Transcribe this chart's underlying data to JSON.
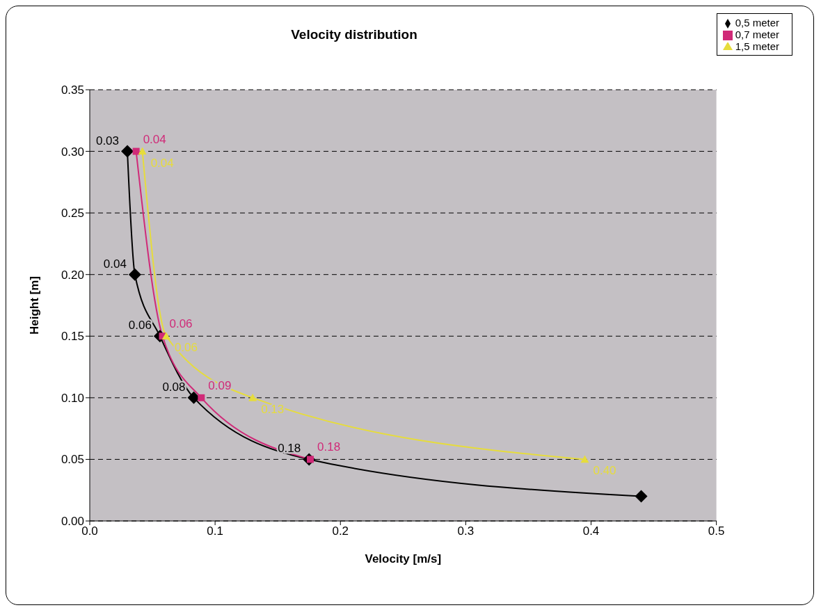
{
  "chart_data": {
    "type": "line",
    "title": "Velocity distribution",
    "xlabel": "Velocity [m/s]",
    "ylabel": "Height [m]",
    "xlim": [
      0,
      0.5
    ],
    "xticks": [
      {
        "value": 0,
        "label": "0.0"
      },
      0.1,
      0.2,
      0.3,
      0.4,
      0.5
    ],
    "ylim": [
      0,
      0.35
    ],
    "yticks": [
      {
        "value": 0,
        "label": "0.00"
      },
      0.05,
      {
        "value": 0.1,
        "label": "0.10"
      },
      0.15,
      {
        "value": 0.2,
        "label": "0.20"
      },
      0.25,
      {
        "value": 0.3,
        "label": "0.30"
      },
      0.35
    ],
    "grid": "y",
    "legend": "top right",
    "line_style": "solid",
    "series": [
      {
        "name": "0,5 meter",
        "color": "#000000",
        "marker": "diamond",
        "x": [
          0.03,
          0.036,
          0.056,
          0.083,
          0.175,
          0.44
        ],
        "values": [
          0.3,
          0.2,
          0.15,
          0.1,
          0.05,
          0.02
        ]
      },
      {
        "name": "0,7 meter",
        "color": "#d02a78",
        "marker": "square",
        "x": [
          0.037,
          0.058,
          0.089,
          0.176
        ],
        "values": [
          0.3,
          0.15,
          0.1,
          0.05
        ]
      },
      {
        "name": "1,5 meter",
        "color": "#e6dc3c",
        "marker": "triangle",
        "x": [
          0.042,
          0.061,
          0.13,
          0.395
        ],
        "values": [
          0.3,
          0.15,
          0.1,
          0.05
        ]
      }
    ],
    "annotations": [
      {
        "text": "0.03",
        "x": 0.03,
        "y": 0.3
      },
      {
        "text": "0.04",
        "x": 0.036,
        "y": 0.2
      },
      {
        "text": "0.06",
        "x": 0.056,
        "y": 0.15
      },
      {
        "text": "0.08",
        "x": 0.083,
        "y": 0.1
      },
      {
        "text": "0.18",
        "x": 0.175,
        "y": 0.05
      },
      {
        "text": "0.04",
        "x": 0.037,
        "y": 0.3
      },
      {
        "text": "0.06",
        "x": 0.058,
        "y": 0.15
      },
      {
        "text": "0.09",
        "x": 0.089,
        "y": 0.1
      },
      {
        "text": "0.18",
        "x": 0.176,
        "y": 0.05
      },
      {
        "text": "0.04",
        "x": 0.042,
        "y": 0.3
      },
      {
        "text": "0.06",
        "x": 0.061,
        "y": 0.15
      },
      {
        "text": "0.13",
        "x": 0.13,
        "y": 0.1
      },
      {
        "text": "0.40",
        "x": 0.395,
        "y": 0.05
      }
    ]
  }
}
